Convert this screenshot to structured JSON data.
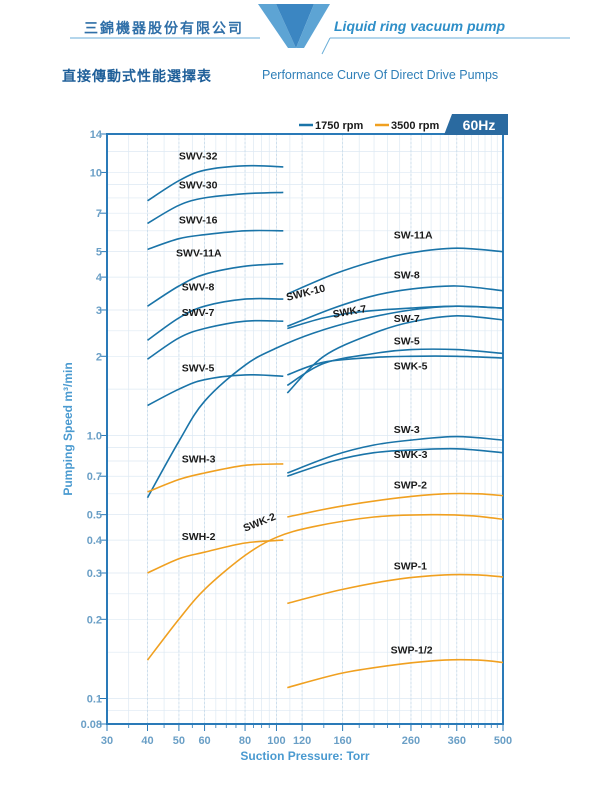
{
  "header": {
    "company_zh": "三錦機器股份有限公司",
    "product_en": "Liquid ring vacuum pump"
  },
  "titles": {
    "zh": "直接傳動式性能選擇表",
    "en": "Performance Curve Of Direct Drive Pumps"
  },
  "colors": {
    "rpm1750": "#1a74a8",
    "rpm3500": "#f0a020",
    "frame": "#2a7ab8",
    "badge": "#2a6aa0",
    "header": "#2f6fa8",
    "axis_text": "#4a9ad0"
  },
  "chart_data": {
    "type": "line",
    "xlabel": "Suction Pressure: Torr",
    "ylabel": "Pumping Speed m³/min",
    "xscale": "log",
    "yscale": "log",
    "xlim": [
      30,
      500
    ],
    "ylim": [
      0.08,
      14
    ],
    "x_ticks": [
      30,
      40,
      50,
      60,
      80,
      100,
      120,
      160,
      260,
      360,
      500
    ],
    "y_ticks": [
      0.08,
      0.1,
      0.2,
      0.3,
      0.4,
      0.5,
      0.7,
      1.0,
      2,
      3,
      4,
      5,
      7,
      10,
      14
    ],
    "grid": true,
    "badge": "60Hz",
    "legend": [
      {
        "label": "1750 rpm",
        "group": "rpm1750"
      },
      {
        "label": "3500 rpm",
        "group": "rpm3500"
      }
    ],
    "series": [
      {
        "name": "SWV-32",
        "group": "rpm1750",
        "x": [
          40,
          50,
          60,
          80,
          105
        ],
        "y": [
          7.8,
          9.3,
          10.2,
          10.6,
          10.5
        ]
      },
      {
        "name": "SWV-30",
        "group": "rpm1750",
        "x": [
          40,
          50,
          60,
          80,
          105
        ],
        "y": [
          6.4,
          7.5,
          8.0,
          8.3,
          8.4
        ]
      },
      {
        "name": "SWV-16",
        "group": "rpm1750",
        "x": [
          40,
          50,
          60,
          80,
          105
        ],
        "y": [
          5.1,
          5.6,
          5.8,
          6.0,
          6.0
        ]
      },
      {
        "name": "SWV-11A",
        "group": "rpm1750",
        "x": [
          40,
          50,
          60,
          80,
          105
        ],
        "y": [
          3.1,
          3.7,
          4.1,
          4.4,
          4.5
        ]
      },
      {
        "name": "SWV-8",
        "group": "rpm1750",
        "x": [
          40,
          50,
          60,
          80,
          105
        ],
        "y": [
          2.3,
          2.8,
          3.1,
          3.3,
          3.3
        ]
      },
      {
        "name": "SWV-7",
        "group": "rpm1750",
        "x": [
          40,
          50,
          60,
          80,
          105
        ],
        "y": [
          1.95,
          2.35,
          2.55,
          2.72,
          2.72
        ]
      },
      {
        "name": "SWV-5",
        "group": "rpm1750",
        "x": [
          40,
          50,
          60,
          80,
          105
        ],
        "y": [
          1.3,
          1.5,
          1.63,
          1.7,
          1.68
        ]
      },
      {
        "name": "SWK-10",
        "group": "rpm1750",
        "x": [
          40,
          50,
          60,
          80,
          100,
          130,
          180,
          260,
          360,
          500
        ],
        "y": [
          0.58,
          0.95,
          1.35,
          1.85,
          2.15,
          2.45,
          2.75,
          3.0,
          3.1,
          3.05
        ]
      },
      {
        "name": "SW-11A",
        "group": "rpm1750",
        "x": [
          108,
          150,
          200,
          260,
          360,
          500
        ],
        "y": [
          3.45,
          4.1,
          4.6,
          4.95,
          5.15,
          5.0
        ]
      },
      {
        "name": "SW-8",
        "group": "rpm1750",
        "x": [
          108,
          150,
          200,
          260,
          360,
          500
        ],
        "y": [
          2.6,
          3.05,
          3.4,
          3.6,
          3.7,
          3.55
        ]
      },
      {
        "name": "SWK-7",
        "group": "rpm1750",
        "x": [
          108,
          140,
          180,
          260,
          360,
          500
        ],
        "y": [
          2.55,
          2.8,
          2.95,
          3.05,
          3.1,
          3.05
        ]
      },
      {
        "name": "SW-7",
        "group": "rpm1750",
        "x": [
          108,
          140,
          200,
          260,
          360,
          500
        ],
        "y": [
          1.45,
          2.0,
          2.45,
          2.7,
          2.85,
          2.75
        ]
      },
      {
        "name": "SW-5",
        "group": "rpm1750",
        "x": [
          108,
          140,
          200,
          260,
          360,
          500
        ],
        "y": [
          1.55,
          1.88,
          2.05,
          2.12,
          2.12,
          2.05
        ]
      },
      {
        "name": "SWK-5",
        "group": "rpm1750",
        "x": [
          108,
          140,
          200,
          260,
          360,
          500
        ],
        "y": [
          1.7,
          1.9,
          1.98,
          2.0,
          2.0,
          1.97
        ]
      },
      {
        "name": "SW-3",
        "group": "rpm1750",
        "x": [
          108,
          150,
          200,
          260,
          360,
          500
        ],
        "y": [
          0.72,
          0.84,
          0.92,
          0.96,
          0.99,
          0.96
        ]
      },
      {
        "name": "SWK-3",
        "group": "rpm1750",
        "x": [
          108,
          150,
          200,
          260,
          360,
          500
        ],
        "y": [
          0.7,
          0.8,
          0.86,
          0.88,
          0.89,
          0.86
        ]
      },
      {
        "name": "SWH-3",
        "group": "rpm3500",
        "x": [
          40,
          50,
          60,
          80,
          105
        ],
        "y": [
          0.61,
          0.68,
          0.72,
          0.77,
          0.78
        ]
      },
      {
        "name": "SWH-2",
        "group": "rpm3500",
        "x": [
          40,
          50,
          60,
          80,
          105
        ],
        "y": [
          0.3,
          0.34,
          0.36,
          0.39,
          0.4
        ]
      },
      {
        "name": "SWK-2",
        "group": "rpm3500",
        "x": [
          40,
          50,
          60,
          80,
          100,
          130,
          200,
          300,
          400,
          500
        ],
        "y": [
          0.14,
          0.2,
          0.26,
          0.35,
          0.41,
          0.45,
          0.49,
          0.5,
          0.495,
          0.48
        ]
      },
      {
        "name": "SWP-2",
        "group": "rpm3500",
        "x": [
          108,
          160,
          240,
          330,
          420,
          500
        ],
        "y": [
          0.49,
          0.54,
          0.58,
          0.6,
          0.6,
          0.59
        ]
      },
      {
        "name": "SWP-1",
        "group": "rpm3500",
        "x": [
          108,
          160,
          240,
          330,
          420,
          500
        ],
        "y": [
          0.23,
          0.26,
          0.285,
          0.295,
          0.295,
          0.29
        ]
      },
      {
        "name": "SWP-1/2",
        "group": "rpm3500",
        "x": [
          108,
          160,
          240,
          330,
          420,
          500
        ],
        "y": [
          0.11,
          0.125,
          0.135,
          0.14,
          0.14,
          0.137
        ]
      }
    ],
    "curve_labels": [
      {
        "text": "SWV-32",
        "x": 50,
        "y": 11.2
      },
      {
        "text": "SWV-30",
        "x": 50,
        "y": 8.7
      },
      {
        "text": "SWV-16",
        "x": 50,
        "y": 6.4
      },
      {
        "text": "SWV-11A",
        "x": 49,
        "y": 4.8
      },
      {
        "text": "SWV-8",
        "x": 51,
        "y": 3.55
      },
      {
        "text": "SWV-7",
        "x": 51,
        "y": 2.85
      },
      {
        "text": "SWV-5",
        "x": 51,
        "y": 1.75
      },
      {
        "text": "SWK-10",
        "x": 108,
        "y": 3.25
      },
      {
        "text": "SWK-7",
        "x": 150,
        "y": 2.8
      },
      {
        "text": "SW-11A",
        "x": 230,
        "y": 5.6
      },
      {
        "text": "SW-8",
        "x": 230,
        "y": 3.95
      },
      {
        "text": "SW-7",
        "x": 230,
        "y": 2.7
      },
      {
        "text": "SW-5",
        "x": 230,
        "y": 2.22
      },
      {
        "text": "SWK-5",
        "x": 230,
        "y": 1.78
      },
      {
        "text": "SW-3",
        "x": 230,
        "y": 1.02
      },
      {
        "text": "SWK-3",
        "x": 230,
        "y": 0.82
      },
      {
        "text": "SWH-3",
        "x": 51,
        "y": 0.79
      },
      {
        "text": "SWH-2",
        "x": 51,
        "y": 0.4
      },
      {
        "text": "SWK-2",
        "x": 80,
        "y": 0.43
      },
      {
        "text": "SWP-2",
        "x": 230,
        "y": 0.63
      },
      {
        "text": "SWP-1",
        "x": 230,
        "y": 0.31
      },
      {
        "text": "SWP-1/2",
        "x": 225,
        "y": 0.148
      }
    ]
  }
}
